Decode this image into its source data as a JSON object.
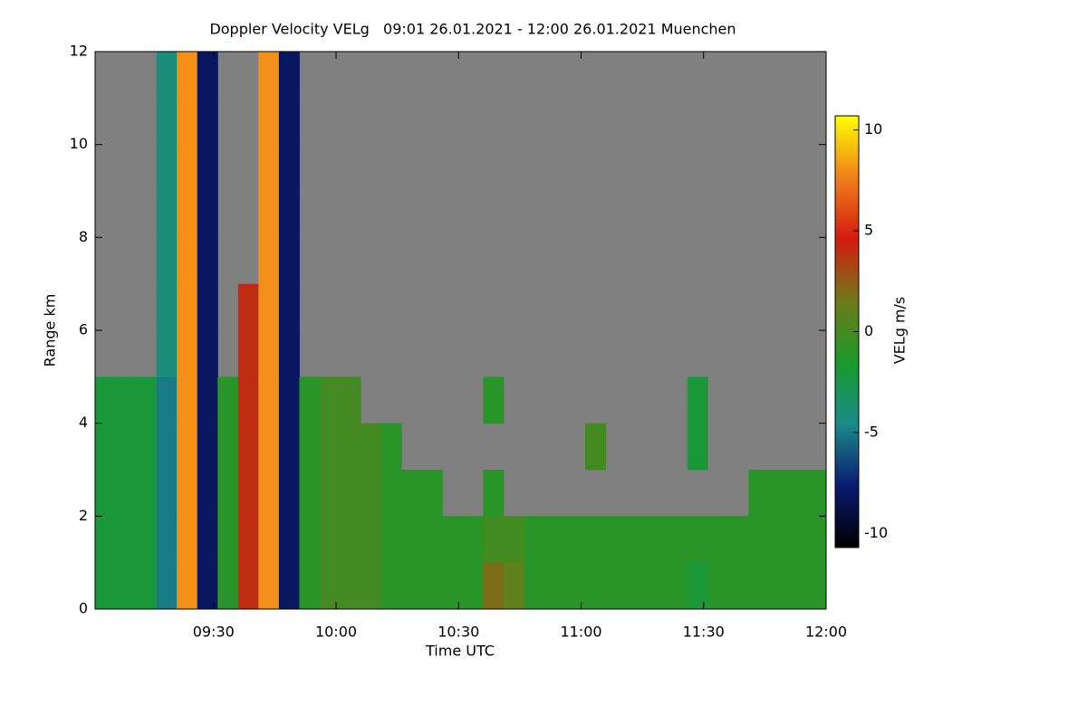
{
  "chart_data": {
    "type": "heatmap",
    "title": "Doppler Velocity VELg   09:01 26.01.2021 - 12:00 26.01.2021 Muenchen",
    "x_label": "Time UTC",
    "y_label": "Range km",
    "colorbar_label": "VELg m/s",
    "x": [
      541,
      546,
      551,
      556,
      561,
      566,
      571,
      576,
      581,
      586,
      591,
      596,
      601,
      606,
      611,
      616,
      621,
      626,
      631,
      636,
      641,
      646,
      651,
      656,
      661,
      666,
      671,
      676,
      681,
      686,
      691,
      696,
      701,
      706,
      711,
      716
    ],
    "y": [
      0,
      1,
      2,
      3,
      4,
      5,
      6,
      7,
      8,
      9,
      10,
      11
    ],
    "xlim": [
      541,
      720
    ],
    "ylim": [
      0,
      12
    ],
    "xticks": [
      {
        "value": 570,
        "label": "09:30"
      },
      {
        "value": 600,
        "label": "10:00"
      },
      {
        "value": 630,
        "label": "10:30"
      },
      {
        "value": 660,
        "label": "11:00"
      },
      {
        "value": 690,
        "label": "11:30"
      },
      {
        "value": 720,
        "label": "12:00"
      }
    ],
    "yticks": [
      0,
      2,
      4,
      6,
      8,
      10,
      12
    ],
    "zlim": [
      -10.7,
      10.7
    ],
    "zticks": [
      -10,
      -5,
      0,
      5,
      10
    ],
    "colormap": [
      "#000000",
      "#0a1a6e",
      "#1a8a8a",
      "#1a9a2a",
      "#6e7a1a",
      "#d41a10",
      "#f0801a",
      "#ffff00"
    ],
    "nan_color": "#808080",
    "values": [
      [
        -2,
        -2,
        -2,
        -5,
        8,
        -8,
        -1,
        4,
        8,
        -8,
        -1,
        0,
        0,
        0,
        -1,
        -1,
        -1,
        -1,
        -1,
        2,
        1,
        -1,
        -1,
        -1,
        -1,
        -1,
        -1,
        -1,
        -1,
        -2,
        -1,
        -1,
        -1,
        -1,
        -1,
        -1
      ],
      [
        -2,
        -2,
        -2,
        -5,
        8,
        -8,
        -1,
        4,
        8,
        -8,
        -1,
        0,
        0,
        0,
        -1,
        -1,
        -1,
        -1,
        -1,
        0,
        0,
        -1,
        -1,
        -1,
        -1,
        -1,
        -1,
        -1,
        -1,
        -1,
        -1,
        -1,
        -1,
        -1,
        -1,
        -1
      ],
      [
        -2,
        -2,
        -2,
        -5,
        8,
        -8,
        -1,
        4,
        8,
        -8,
        -1,
        0,
        0,
        0,
        -1,
        -1,
        -1,
        null,
        null,
        -1,
        null,
        null,
        null,
        null,
        null,
        null,
        null,
        null,
        null,
        null,
        null,
        null,
        -1,
        -1,
        -1,
        -1
      ],
      [
        -2,
        -2,
        -2,
        -5,
        8,
        -8,
        -1,
        4,
        8,
        -8,
        -1,
        0,
        0,
        0,
        -1,
        null,
        null,
        null,
        null,
        null,
        null,
        null,
        null,
        null,
        0,
        null,
        null,
        null,
        null,
        -2,
        null,
        null,
        null,
        null,
        null,
        null
      ],
      [
        -2,
        -2,
        -2,
        -5,
        8,
        -8,
        -1,
        4,
        8,
        -8,
        -1,
        0,
        0,
        null,
        null,
        null,
        null,
        null,
        null,
        -1,
        null,
        null,
        null,
        null,
        null,
        null,
        null,
        null,
        null,
        -2,
        null,
        null,
        null,
        null,
        null,
        null
      ],
      [
        null,
        null,
        null,
        -4,
        8,
        -8,
        null,
        4,
        8,
        -8,
        null,
        null,
        null,
        null,
        null,
        null,
        null,
        null,
        null,
        null,
        null,
        null,
        null,
        null,
        null,
        null,
        null,
        null,
        null,
        null,
        null,
        null,
        null,
        null,
        null,
        null
      ],
      [
        null,
        null,
        null,
        -4,
        8,
        -8,
        null,
        4,
        8,
        -8,
        null,
        null,
        null,
        null,
        null,
        null,
        null,
        null,
        null,
        null,
        null,
        null,
        null,
        null,
        null,
        null,
        null,
        null,
        null,
        null,
        null,
        null,
        null,
        null,
        null,
        null
      ],
      [
        null,
        null,
        null,
        -4,
        8,
        -8,
        null,
        null,
        8,
        -8,
        null,
        null,
        null,
        null,
        null,
        null,
        null,
        null,
        null,
        null,
        null,
        null,
        null,
        null,
        null,
        null,
        null,
        null,
        null,
        null,
        null,
        null,
        null,
        null,
        null,
        null
      ],
      [
        null,
        null,
        null,
        -4,
        8,
        -8,
        null,
        null,
        8,
        -8,
        null,
        null,
        null,
        null,
        null,
        null,
        null,
        null,
        null,
        null,
        null,
        null,
        null,
        null,
        null,
        null,
        null,
        null,
        null,
        null,
        null,
        null,
        null,
        null,
        null,
        null
      ],
      [
        null,
        null,
        null,
        -4,
        8,
        -8,
        null,
        null,
        8,
        -8,
        null,
        null,
        null,
        null,
        null,
        null,
        null,
        null,
        null,
        null,
        null,
        null,
        null,
        null,
        null,
        null,
        null,
        null,
        null,
        null,
        null,
        null,
        null,
        null,
        null,
        null
      ],
      [
        null,
        null,
        null,
        -4,
        8,
        -8,
        null,
        null,
        8,
        -8,
        null,
        null,
        null,
        null,
        null,
        null,
        null,
        null,
        null,
        null,
        null,
        null,
        null,
        null,
        null,
        null,
        null,
        null,
        null,
        null,
        null,
        null,
        null,
        null,
        null,
        null
      ],
      [
        null,
        null,
        null,
        -4,
        8,
        -8,
        null,
        null,
        8,
        -8,
        null,
        null,
        null,
        null,
        null,
        null,
        null,
        null,
        null,
        null,
        null,
        null,
        null,
        null,
        null,
        null,
        null,
        null,
        null,
        null,
        null,
        null,
        null,
        null,
        null,
        null
      ]
    ]
  }
}
